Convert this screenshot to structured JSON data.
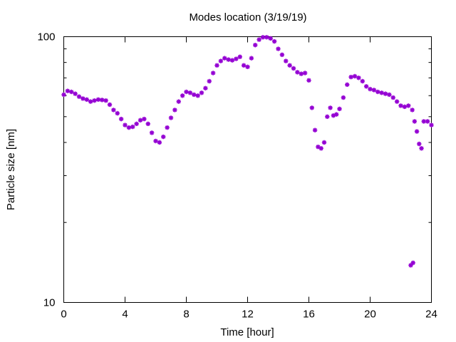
{
  "chart_data": {
    "type": "scatter",
    "title": "Modes location (3/19/19)",
    "xlabel": "Time [hour]",
    "ylabel": "Particle size [nm]",
    "xlim": [
      0,
      24
    ],
    "ylim": [
      10,
      100
    ],
    "y_scale": "log",
    "grid": false,
    "legend": "none",
    "marker": "star",
    "color": "#9400d3",
    "x_ticks": [
      {
        "value": 0,
        "label": "0"
      },
      {
        "value": 4,
        "label": "4"
      },
      {
        "value": 8,
        "label": "8"
      },
      {
        "value": 12,
        "label": "12"
      },
      {
        "value": 16,
        "label": "16"
      },
      {
        "value": 20,
        "label": "20"
      },
      {
        "value": 24,
        "label": "24"
      }
    ],
    "y_ticks": [
      {
        "value": 10,
        "label": "10"
      },
      {
        "value": 100,
        "label": "100"
      }
    ],
    "series": [
      {
        "points": [
          [
            0.0,
            60.5
          ],
          [
            0.25,
            62.5
          ],
          [
            0.5,
            62.0
          ],
          [
            0.75,
            61.0
          ],
          [
            1.0,
            59.5
          ],
          [
            1.25,
            58.5
          ],
          [
            1.5,
            58.0
          ],
          [
            1.75,
            57.0
          ],
          [
            2.0,
            57.5
          ],
          [
            2.25,
            58.0
          ],
          [
            2.5,
            57.8
          ],
          [
            2.75,
            57.5
          ],
          [
            3.0,
            55.5
          ],
          [
            3.25,
            53.0
          ],
          [
            3.5,
            51.5
          ],
          [
            3.75,
            49.0
          ],
          [
            4.0,
            46.5
          ],
          [
            4.25,
            45.5
          ],
          [
            4.5,
            45.8
          ],
          [
            4.75,
            47.0
          ],
          [
            5.0,
            48.5
          ],
          [
            5.25,
            49.0
          ],
          [
            5.5,
            47.0
          ],
          [
            5.75,
            43.5
          ],
          [
            6.0,
            40.5
          ],
          [
            6.25,
            40.0
          ],
          [
            6.5,
            42.0
          ],
          [
            6.75,
            45.5
          ],
          [
            7.0,
            49.5
          ],
          [
            7.25,
            53.0
          ],
          [
            7.5,
            57.0
          ],
          [
            7.75,
            60.0
          ],
          [
            8.0,
            62.0
          ],
          [
            8.25,
            61.5
          ],
          [
            8.5,
            60.5
          ],
          [
            8.75,
            60.0
          ],
          [
            9.0,
            61.5
          ],
          [
            9.25,
            64.0
          ],
          [
            9.5,
            68.0
          ],
          [
            9.75,
            73.0
          ],
          [
            10.0,
            78.0
          ],
          [
            10.25,
            81.0
          ],
          [
            10.5,
            83.0
          ],
          [
            10.75,
            82.0
          ],
          [
            11.0,
            81.5
          ],
          [
            11.25,
            82.5
          ],
          [
            11.5,
            84.0
          ],
          [
            11.75,
            78.0
          ],
          [
            12.0,
            77.0
          ],
          [
            12.25,
            83.0
          ],
          [
            12.5,
            93.0
          ],
          [
            12.75,
            97.5
          ],
          [
            13.0,
            99.5
          ],
          [
            13.25,
            99.5
          ],
          [
            13.5,
            98.5
          ],
          [
            13.75,
            96.0
          ],
          [
            14.0,
            90.0
          ],
          [
            14.25,
            85.5
          ],
          [
            14.5,
            81.0
          ],
          [
            14.75,
            78.0
          ],
          [
            15.0,
            76.0
          ],
          [
            15.25,
            73.5
          ],
          [
            15.5,
            72.5
          ],
          [
            15.75,
            73.0
          ],
          [
            16.0,
            68.5
          ],
          [
            16.2,
            54.0
          ],
          [
            16.4,
            44.5
          ],
          [
            16.6,
            38.5
          ],
          [
            16.8,
            38.0
          ],
          [
            17.0,
            40.0
          ],
          [
            17.2,
            50.0
          ],
          [
            17.4,
            54.0
          ],
          [
            17.6,
            50.5
          ],
          [
            17.8,
            51.0
          ],
          [
            18.0,
            53.5
          ],
          [
            18.25,
            59.0
          ],
          [
            18.5,
            66.0
          ],
          [
            18.75,
            70.5
          ],
          [
            19.0,
            71.0
          ],
          [
            19.25,
            70.0
          ],
          [
            19.5,
            68.0
          ],
          [
            19.75,
            65.0
          ],
          [
            20.0,
            63.5
          ],
          [
            20.25,
            63.0
          ],
          [
            20.5,
            62.0
          ],
          [
            20.75,
            61.5
          ],
          [
            21.0,
            61.0
          ],
          [
            21.25,
            60.5
          ],
          [
            21.5,
            59.0
          ],
          [
            21.75,
            57.0
          ],
          [
            22.0,
            55.0
          ],
          [
            22.25,
            54.5
          ],
          [
            22.5,
            55.0
          ],
          [
            22.75,
            53.0
          ],
          [
            22.9,
            48.0
          ],
          [
            23.05,
            44.0
          ],
          [
            23.2,
            39.5
          ],
          [
            23.35,
            38.0
          ],
          [
            23.5,
            48.0
          ],
          [
            23.75,
            48.0
          ],
          [
            24.0,
            46.5
          ],
          [
            22.65,
            13.8
          ],
          [
            22.8,
            14.1
          ]
        ]
      }
    ]
  }
}
